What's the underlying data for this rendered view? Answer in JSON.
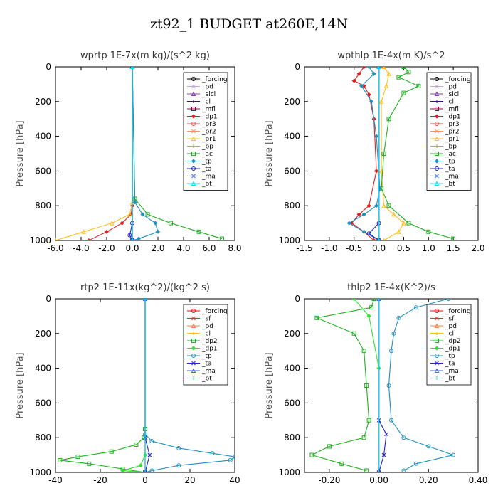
{
  "figure_title": "zt92_1  BUDGET at260E,14N",
  "chart_data": [
    {
      "type": "line",
      "title": "wprtp  1E-7x(m kg)/(s^2 kg)",
      "ylabel": "Pressure [hPa]",
      "xlim": [
        -6.0,
        8.0
      ],
      "ylim": [
        1000,
        0
      ],
      "xticks": [
        -6.0,
        -4.0,
        -2.0,
        0.0,
        2.0,
        4.0,
        6.0,
        8.0
      ],
      "xtick_labels": [
        "-6.0",
        "-4.0",
        "-2.0",
        "0.0",
        "2.0",
        "4.0",
        "6.0",
        "8.0"
      ],
      "yticks": [
        0,
        200,
        400,
        600,
        800,
        1000
      ],
      "legend_position": "top-right",
      "series": [
        {
          "name": "_forcing",
          "color": "#000000",
          "x": [
            0,
            0
          ],
          "y": [
            0,
            1000
          ]
        },
        {
          "name": "_pd",
          "color": "#c8a2e8",
          "x": [
            0,
            0
          ],
          "y": [
            0,
            1000
          ]
        },
        {
          "name": "_sicl",
          "color": "#8040c0",
          "x": [
            0,
            0
          ],
          "y": [
            0,
            1000
          ]
        },
        {
          "name": "_cl",
          "color": "#401060",
          "x": [
            0,
            0
          ],
          "y": [
            0,
            1000
          ]
        },
        {
          "name": "_mfl",
          "color": "#a00040",
          "x": [
            0,
            0
          ],
          "y": [
            0,
            1000
          ]
        },
        {
          "name": "_dp1",
          "color": "#e02020",
          "x": [
            0,
            0,
            -0.1,
            -0.8,
            -2.0,
            -3.4
          ],
          "y": [
            0,
            800,
            850,
            900,
            950,
            1000
          ]
        },
        {
          "name": "_pr3",
          "color": "#ff4040",
          "x": [
            0,
            0
          ],
          "y": [
            0,
            1000
          ]
        },
        {
          "name": "_pr2",
          "color": "#ff9060",
          "x": [
            0,
            0
          ],
          "y": [
            0,
            1000
          ]
        },
        {
          "name": "_pr1",
          "color": "#ffc020",
          "x": [
            0,
            0,
            -0.2,
            -1.6,
            -3.8,
            -6.0
          ],
          "y": [
            0,
            780,
            850,
            900,
            950,
            1000
          ]
        },
        {
          "name": "_bp",
          "color": "#a0c000",
          "x": [
            0,
            0
          ],
          "y": [
            0,
            1000
          ]
        },
        {
          "name": "_ac",
          "color": "#20b020",
          "x": [
            0,
            0.2,
            1.2,
            3.0,
            5.2,
            7.0
          ],
          "y": [
            0,
            760,
            850,
            900,
            950,
            990
          ]
        },
        {
          "name": "_tp",
          "color": "#2090c0",
          "x": [
            0,
            0.2,
            0.8,
            1.8,
            2.0,
            0.5,
            0
          ],
          "y": [
            0,
            780,
            850,
            900,
            950,
            990,
            1000
          ]
        },
        {
          "name": "_ta",
          "color": "#2020d0",
          "x": [
            0,
            0,
            -0.2,
            0
          ],
          "y": [
            0,
            900,
            970,
            1000
          ]
        },
        {
          "name": "_ma",
          "color": "#4060ff",
          "x": [
            0,
            0
          ],
          "y": [
            0,
            1000
          ]
        },
        {
          "name": "_bt",
          "color": "#00e0ff",
          "x": [
            0,
            0
          ],
          "y": [
            0,
            1000
          ]
        }
      ]
    },
    {
      "type": "line",
      "title": "wpthlp  1E-4x(m K)/s^2",
      "ylabel": "Pressure [hPa]",
      "xlim": [
        -1.5,
        2.0
      ],
      "ylim": [
        1000,
        0
      ],
      "xticks": [
        -1.5,
        -1.0,
        -0.5,
        0.0,
        0.5,
        1.0,
        1.5,
        2.0
      ],
      "xtick_labels": [
        "-1.5",
        "-1.0",
        "-0.5",
        "0.0",
        "0.5",
        "1.0",
        "1.5",
        "2.0"
      ],
      "yticks": [
        0,
        200,
        400,
        600,
        800,
        1000
      ],
      "legend_position": "top-right",
      "series": [
        {
          "name": "_forcing",
          "color": "#000000",
          "x": [
            0,
            0
          ],
          "y": [
            0,
            1000
          ]
        },
        {
          "name": "_pd",
          "color": "#c8a2e8",
          "x": [
            0,
            0
          ],
          "y": [
            0,
            1000
          ]
        },
        {
          "name": "_sicl",
          "color": "#8040c0",
          "x": [
            0,
            0
          ],
          "y": [
            0,
            1000
          ]
        },
        {
          "name": "_cl",
          "color": "#401060",
          "x": [
            0,
            0
          ],
          "y": [
            0,
            1000
          ]
        },
        {
          "name": "_mfl",
          "color": "#a00040",
          "x": [
            0,
            0
          ],
          "y": [
            0,
            1000
          ]
        },
        {
          "name": "_dp1",
          "color": "#e02020",
          "x": [
            -0.3,
            -0.4,
            -0.5,
            -0.3,
            -0.2,
            -0.1,
            -0.05,
            -0.2,
            -0.4,
            -0.55,
            -0.3,
            -0.1
          ],
          "y": [
            0,
            40,
            80,
            110,
            160,
            300,
            600,
            800,
            850,
            900,
            950,
            1000
          ]
        },
        {
          "name": "_pr3",
          "color": "#ff4040",
          "x": [
            0,
            0
          ],
          "y": [
            0,
            1000
          ]
        },
        {
          "name": "_pr2",
          "color": "#ff9060",
          "x": [
            0,
            0
          ],
          "y": [
            0,
            1000
          ]
        },
        {
          "name": "_pr1",
          "color": "#ffc020",
          "x": [
            0.1,
            0.2,
            0.15,
            0.05,
            0.05,
            0.1,
            0.3,
            0.5,
            0.4,
            0.1
          ],
          "y": [
            0,
            40,
            110,
            200,
            600,
            800,
            850,
            900,
            950,
            1000
          ]
        },
        {
          "name": "_bp",
          "color": "#a0c000",
          "x": [
            0,
            0
          ],
          "y": [
            0,
            1000
          ]
        },
        {
          "name": "_ac",
          "color": "#20b020",
          "x": [
            0.5,
            0.6,
            0.4,
            0.8,
            0.5,
            0.2,
            0.1,
            0.05,
            0.2,
            0.6,
            1.0,
            1.5
          ],
          "y": [
            0,
            30,
            60,
            110,
            150,
            300,
            500,
            700,
            800,
            900,
            950,
            990
          ]
        },
        {
          "name": "_tp",
          "color": "#2090c0",
          "x": [
            -0.2,
            -0.1,
            -0.35,
            -0.15,
            -0.05,
            0.02,
            -0.05,
            -0.3,
            -0.6,
            -0.3,
            0
          ],
          "y": [
            0,
            40,
            110,
            200,
            400,
            700,
            800,
            850,
            900,
            950,
            1000
          ]
        },
        {
          "name": "_ta",
          "color": "#2020d0",
          "x": [
            0,
            0,
            -0.2,
            0
          ],
          "y": [
            0,
            900,
            960,
            1000
          ]
        },
        {
          "name": "_ma",
          "color": "#4060ff",
          "x": [
            0,
            0
          ],
          "y": [
            0,
            1000
          ]
        },
        {
          "name": "_bt",
          "color": "#00e0ff",
          "x": [
            0,
            0
          ],
          "y": [
            0,
            1000
          ]
        }
      ]
    },
    {
      "type": "line",
      "title": "rtp2  1E-11x(kg^2)/(kg^2 s)",
      "ylabel": "Pressure [hPa]",
      "xlim": [
        -40,
        40
      ],
      "ylim": [
        1000,
        0
      ],
      "xticks": [
        -40,
        -20,
        0,
        20,
        40
      ],
      "xtick_labels": [
        "-40",
        "-20",
        "0",
        "20",
        "40"
      ],
      "yticks": [
        0,
        200,
        400,
        600,
        800,
        1000
      ],
      "legend_position": "top-right",
      "series": [
        {
          "name": "_forcing",
          "color": "#ff0000",
          "x": [
            0,
            0
          ],
          "y": [
            0,
            1000
          ]
        },
        {
          "name": "_sf",
          "color": "#e03030",
          "x": [
            0,
            0
          ],
          "y": [
            0,
            1000
          ]
        },
        {
          "name": "_pd",
          "color": "#ff8040",
          "x": [
            0,
            0
          ],
          "y": [
            0,
            1000
          ]
        },
        {
          "name": "_cl",
          "color": "#ffc000",
          "x": [
            0,
            0
          ],
          "y": [
            0,
            1000
          ]
        },
        {
          "name": "_dp2",
          "color": "#20b020",
          "x": [
            0,
            0,
            -0.5,
            -4,
            -15,
            -30,
            -38,
            -25,
            -10,
            0
          ],
          "y": [
            0,
            750,
            800,
            840,
            880,
            910,
            930,
            950,
            980,
            1000
          ]
        },
        {
          "name": "_dp1",
          "color": "#30e030",
          "x": [
            0,
            0,
            -2,
            -10,
            0
          ],
          "y": [
            0,
            900,
            960,
            990,
            1000
          ]
        },
        {
          "name": "_tp",
          "color": "#2090c0",
          "x": [
            0,
            0,
            3,
            15,
            30,
            40,
            38,
            15,
            3,
            0
          ],
          "y": [
            0,
            780,
            820,
            860,
            890,
            910,
            930,
            960,
            990,
            1000
          ]
        },
        {
          "name": "_ta",
          "color": "#2020d0",
          "x": [
            0,
            0,
            2,
            0
          ],
          "y": [
            0,
            800,
            900,
            1000
          ]
        },
        {
          "name": "_ma",
          "color": "#4060ff",
          "x": [
            0,
            0
          ],
          "y": [
            0,
            1000
          ]
        },
        {
          "name": "_bt",
          "color": "#00e0ff",
          "x": [
            0,
            0
          ],
          "y": [
            0,
            1000
          ]
        }
      ]
    },
    {
      "type": "line",
      "title": "thlp2  1E-4x(K^2)/s",
      "ylabel": "Pressure [hPa]",
      "xlim": [
        -0.3,
        0.4
      ],
      "ylim": [
        1000,
        0
      ],
      "xticks": [
        -0.2,
        0.0,
        0.2,
        0.4
      ],
      "xtick_labels": [
        "-0.20",
        "0.00",
        "0.20",
        "0.40"
      ],
      "yticks": [
        0,
        200,
        400,
        600,
        800,
        1000
      ],
      "legend_position": "top-right",
      "series": [
        {
          "name": "_forcing",
          "color": "#ff0000",
          "x": [
            0,
            0
          ],
          "y": [
            0,
            1000
          ]
        },
        {
          "name": "_sf",
          "color": "#e03030",
          "x": [
            0,
            0
          ],
          "y": [
            0,
            1000
          ]
        },
        {
          "name": "_pd",
          "color": "#ff8040",
          "x": [
            0,
            0
          ],
          "y": [
            0,
            1000
          ]
        },
        {
          "name": "_cl",
          "color": "#ffc000",
          "x": [
            0,
            0
          ],
          "y": [
            0,
            1000
          ]
        },
        {
          "name": "_dp2",
          "color": "#20b020",
          "x": [
            -0.02,
            -0.03,
            -0.25,
            -0.1,
            -0.06,
            -0.05,
            -0.04,
            -0.06,
            -0.2,
            -0.27,
            -0.15,
            -0.05
          ],
          "y": [
            0,
            50,
            110,
            200,
            300,
            500,
            700,
            800,
            850,
            900,
            950,
            990
          ]
        },
        {
          "name": "_dp1",
          "color": "#30e030",
          "x": [
            -0.1,
            -0.04,
            0
          ],
          "y": [
            0,
            100,
            400
          ]
        },
        {
          "name": "_tp",
          "color": "#2090c0",
          "x": [
            0.28,
            0.15,
            0.08,
            0.06,
            0.05,
            0.04,
            0.05,
            0.1,
            0.2,
            0.3,
            0.15,
            0.1
          ],
          "y": [
            0,
            50,
            110,
            200,
            300,
            500,
            700,
            800,
            850,
            900,
            950,
            990
          ]
        },
        {
          "name": "_ta",
          "color": "#2020d0",
          "x": [
            0,
            0,
            0.03,
            0.02,
            0
          ],
          "y": [
            0,
            700,
            780,
            900,
            1000
          ]
        },
        {
          "name": "_ma",
          "color": "#4060ff",
          "x": [
            0,
            0
          ],
          "y": [
            0,
            1000
          ]
        },
        {
          "name": "_bt",
          "color": "#00e0ff",
          "x": [
            0,
            0
          ],
          "y": [
            0,
            1000
          ]
        }
      ]
    }
  ]
}
